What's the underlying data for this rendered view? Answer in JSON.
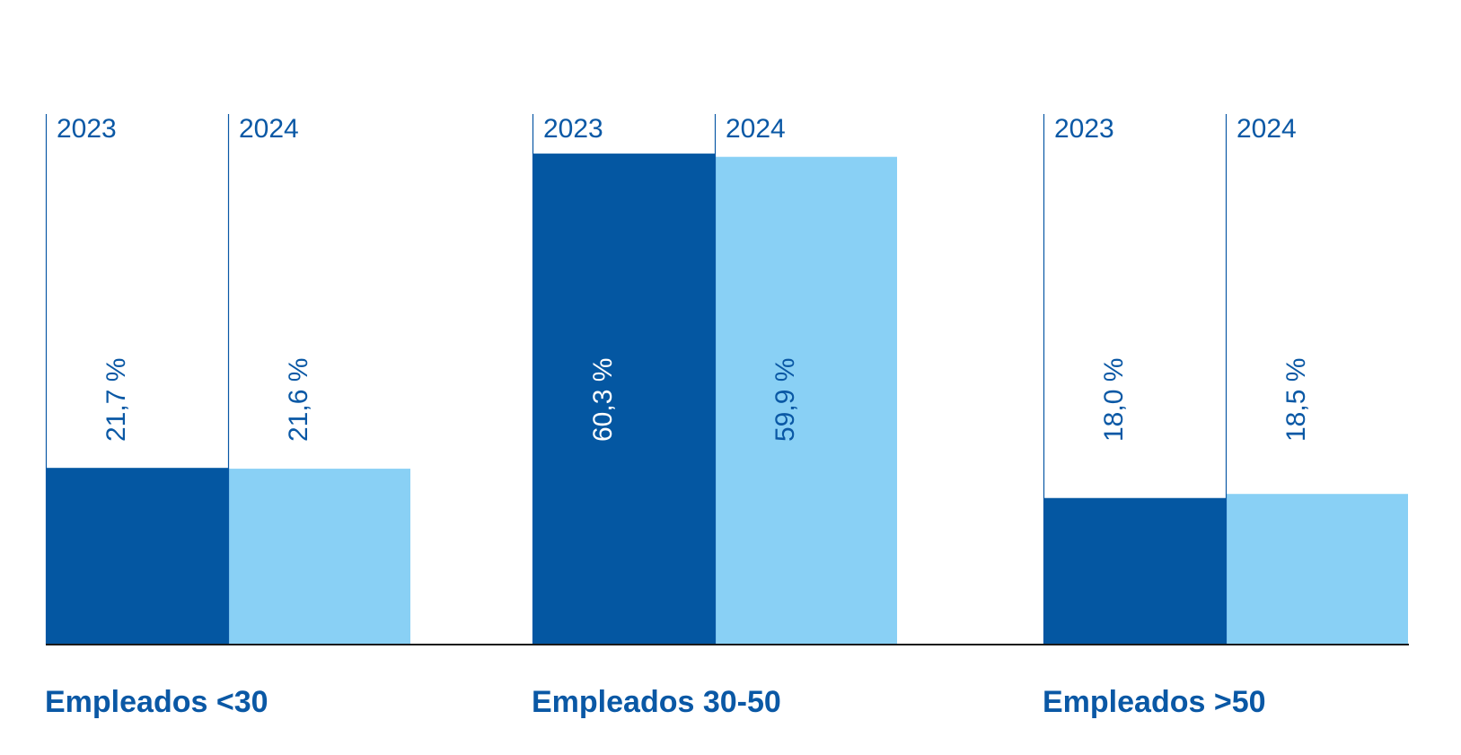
{
  "chart_data": {
    "type": "bar",
    "categories": [
      "Empleados <30",
      "Empleados 30-50",
      "Empleados >50"
    ],
    "series": [
      {
        "name": "2023",
        "values": [
          21.7,
          60.3,
          18.0
        ],
        "value_labels": [
          "21,7 %",
          "60,3 %",
          "18,0 %"
        ],
        "color": "#0457a2"
      },
      {
        "name": "2024",
        "values": [
          21.6,
          59.9,
          18.5
        ],
        "value_labels": [
          "21,6 %",
          "59,9 %",
          "18,5 %"
        ],
        "color": "#89d0f5"
      }
    ],
    "ylim": [
      0,
      65
    ],
    "grid": false,
    "label_color": "#0a58a5",
    "inside_label_color": "#ffffff",
    "axis_color": "#1a1a1a"
  }
}
